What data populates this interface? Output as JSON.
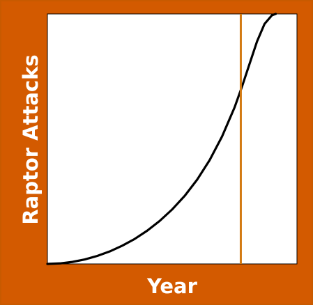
{
  "chart_data": {
    "type": "line",
    "title": "",
    "xlabel": "Year",
    "ylabel": "Raptor Attacks",
    "xlim": [
      0,
      1
    ],
    "ylim": [
      0,
      1
    ],
    "grid": false,
    "legend": "none",
    "series": [
      {
        "x": [
          0,
          0.05,
          0.1,
          0.15,
          0.2,
          0.25,
          0.3,
          0.35,
          0.4,
          0.45,
          0.5,
          0.55,
          0.6,
          0.65,
          0.7,
          0.75,
          0.78,
          0.81,
          0.84,
          0.87,
          0.9,
          0.915
        ],
        "y": [
          0,
          0.002,
          0.008,
          0.018,
          0.032,
          0.05,
          0.073,
          0.1,
          0.133,
          0.172,
          0.218,
          0.272,
          0.337,
          0.415,
          0.51,
          0.626,
          0.71,
          0.8,
          0.89,
          0.96,
          0.995,
          1.0
        ]
      }
    ],
    "annotations": [
      {
        "type": "vline",
        "x": 0.775
      }
    ]
  },
  "colors": {
    "background": "#d35a00",
    "border": "#c85a00",
    "plot_background": "#ffffff",
    "curve": "#000000",
    "marker_line": "#d37a12",
    "label_text": "#ffffff"
  }
}
